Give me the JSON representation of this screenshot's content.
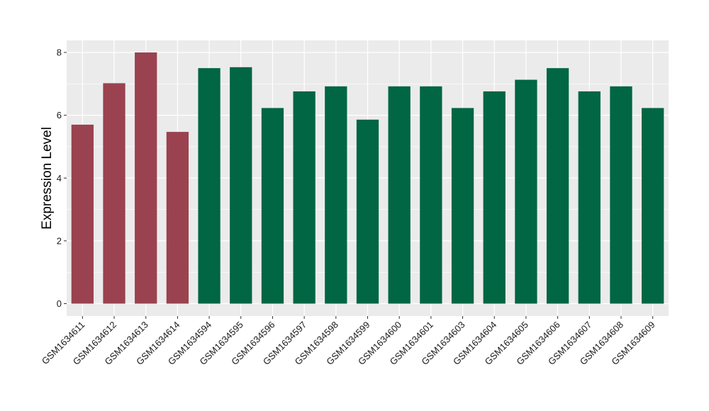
{
  "chart_data": {
    "type": "bar",
    "ylabel": "Expression Level",
    "xlabel": "",
    "ylim": [
      -0.4,
      8.3
    ],
    "yticks": [
      0,
      2,
      4,
      6,
      8
    ],
    "grid": true,
    "categories": [
      "GSM1634611",
      "GSM1634612",
      "GSM1634613",
      "GSM1634614",
      "GSM1634594",
      "GSM1634595",
      "GSM1634596",
      "GSM1634597",
      "GSM1634598",
      "GSM1634599",
      "GSM1634600",
      "GSM1634601",
      "GSM1634603",
      "GSM1634604",
      "GSM1634605",
      "GSM1634606",
      "GSM1634607",
      "GSM1634608",
      "GSM1634609"
    ],
    "values": [
      5.7,
      7.02,
      8.0,
      5.47,
      7.5,
      7.53,
      6.23,
      6.76,
      6.92,
      5.86,
      6.92,
      6.92,
      6.23,
      6.76,
      7.13,
      7.5,
      6.76,
      6.92,
      6.23
    ],
    "group_index": [
      0,
      0,
      0,
      0,
      1,
      1,
      1,
      1,
      1,
      1,
      1,
      1,
      1,
      1,
      1,
      1,
      1,
      1,
      1
    ],
    "group_colors": [
      "#9b4250",
      "#006644"
    ],
    "panel_color": "#ebebeb",
    "grid_color": "#ffffff"
  }
}
